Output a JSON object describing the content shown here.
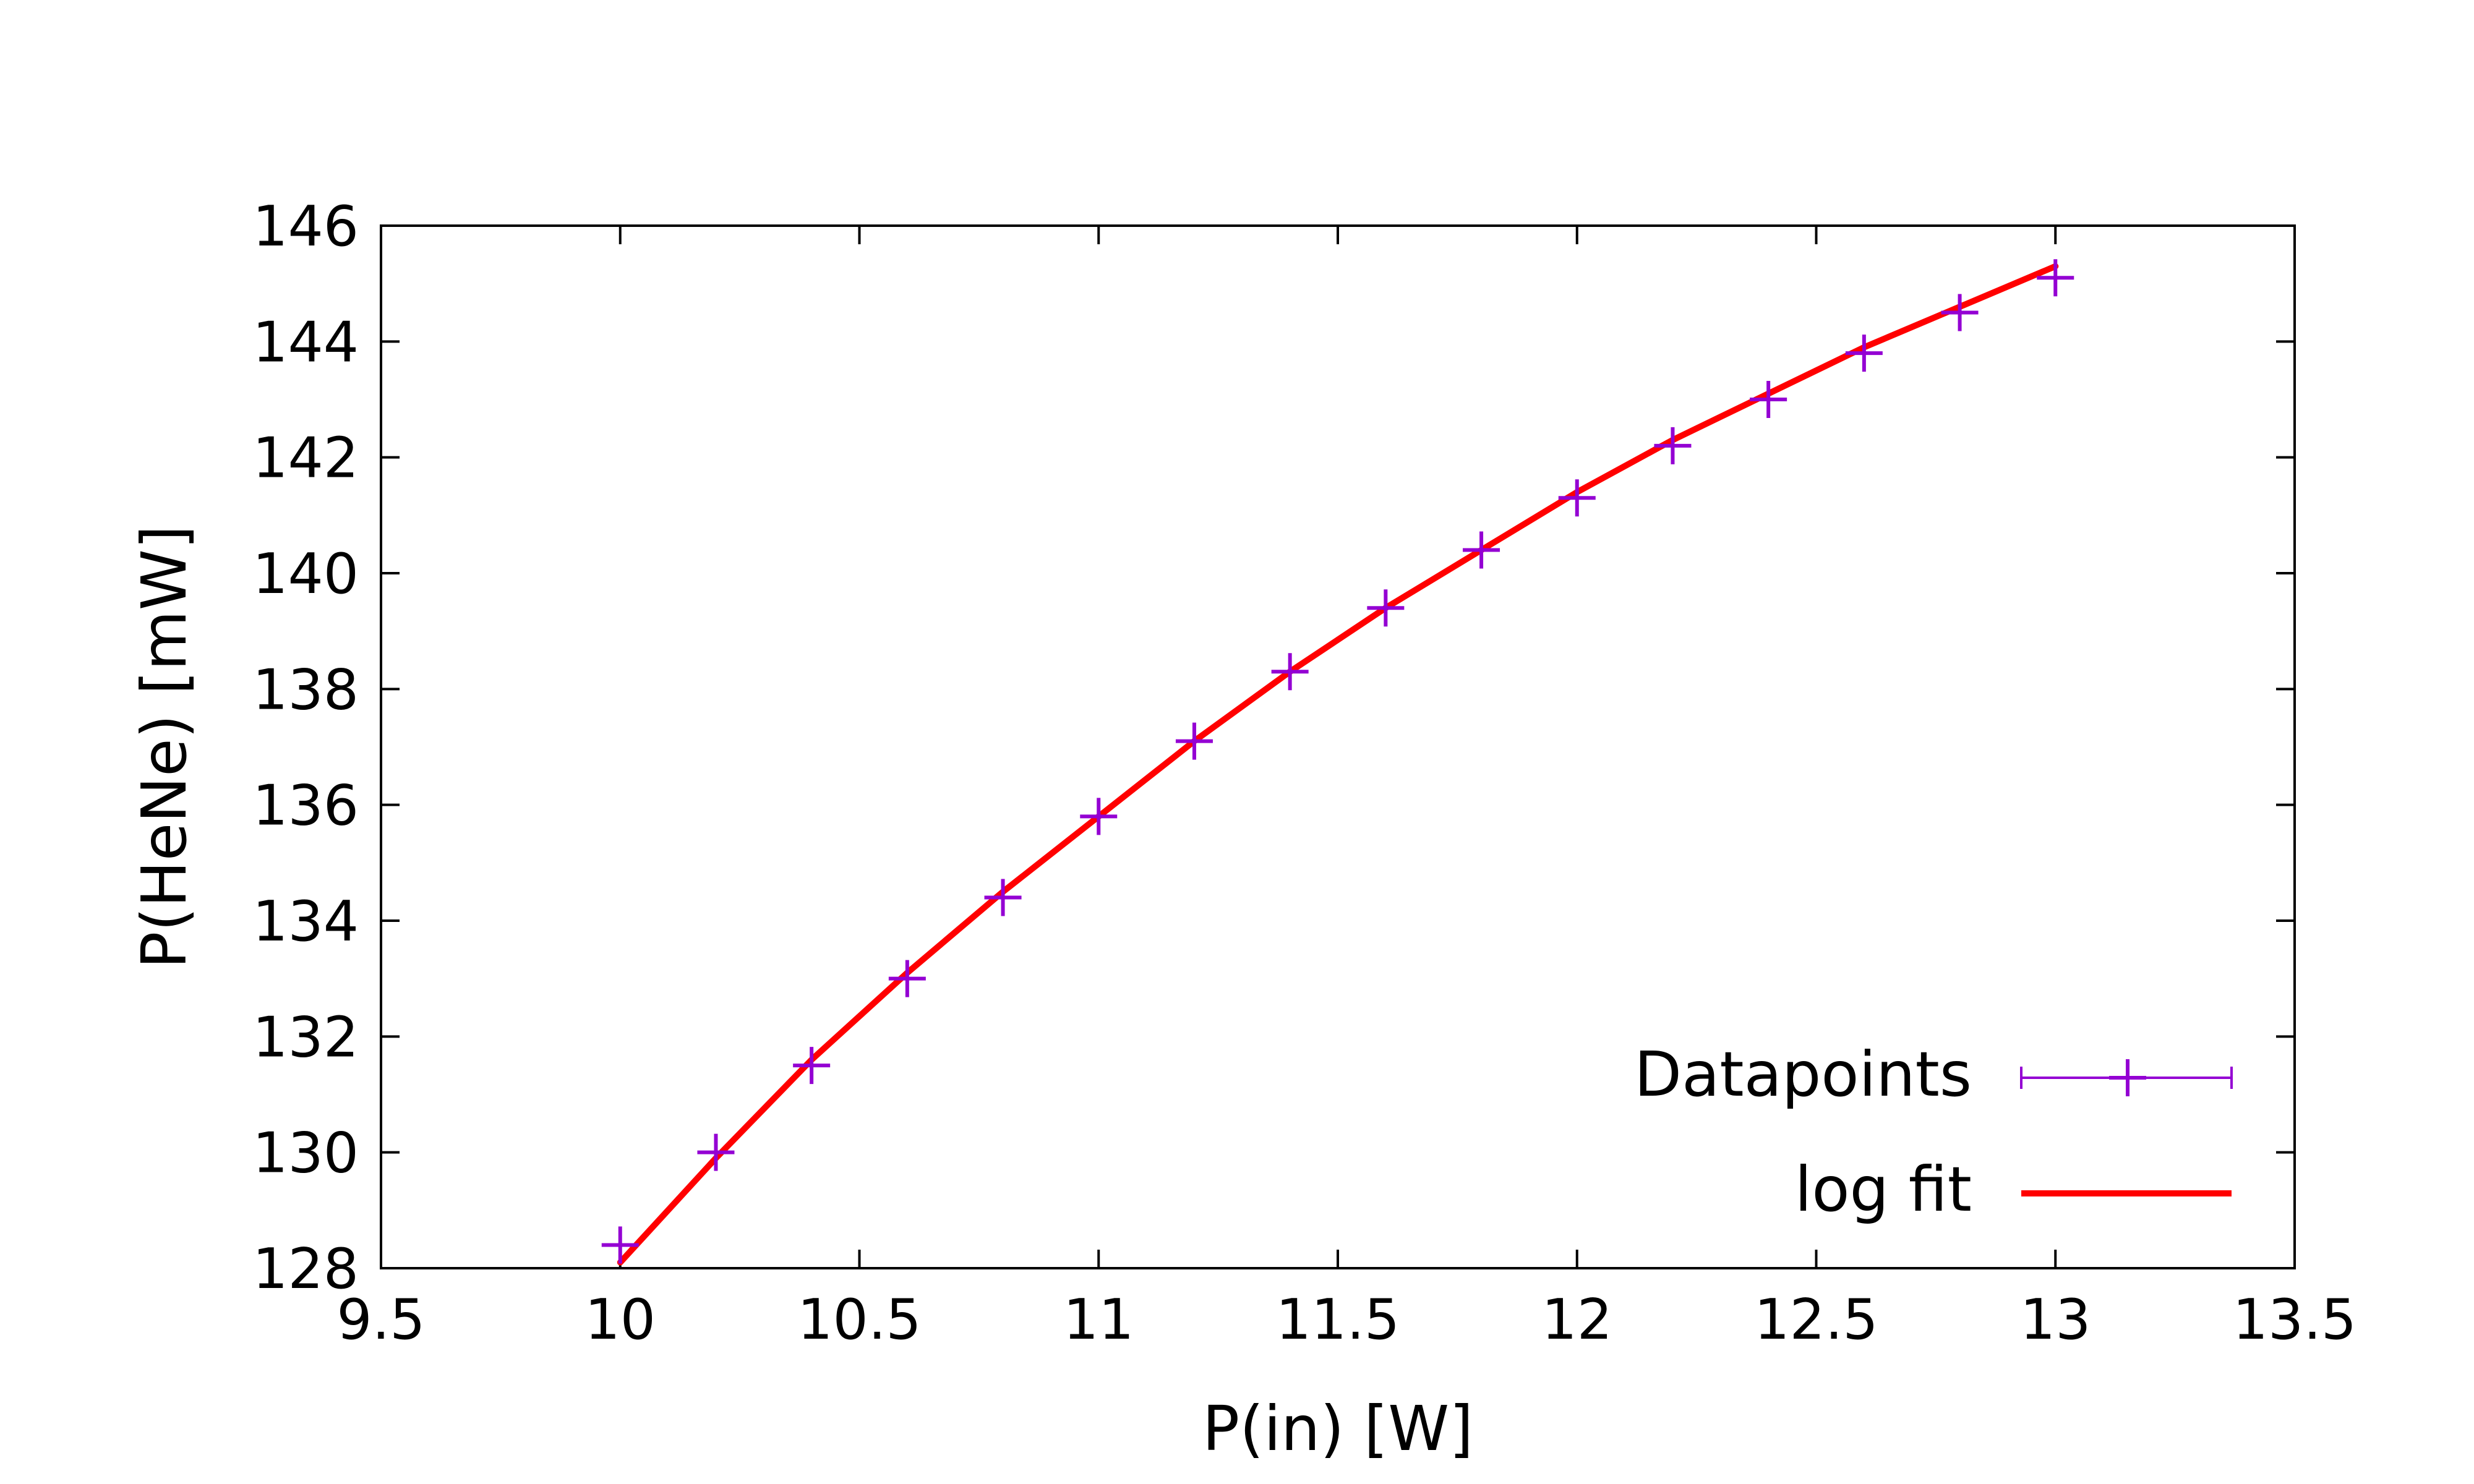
{
  "chart_data": {
    "type": "line",
    "title": "",
    "xlabel": "P(in) [W]",
    "ylabel": "P(HeNe) [mW]",
    "xlim": [
      9.5,
      13.5
    ],
    "ylim": [
      128,
      146
    ],
    "xticks": [
      "9.5",
      "10",
      "10.5",
      "11",
      "11.5",
      "12",
      "12.5",
      "13",
      "13.5"
    ],
    "yticks": [
      "128",
      "130",
      "132",
      "134",
      "136",
      "138",
      "140",
      "142",
      "144",
      "146"
    ],
    "grid": false,
    "legend_position": "bottom-right",
    "series": [
      {
        "name": "Datapoints",
        "kind": "points-with-xerror",
        "color": "#9400d3",
        "x": [
          10.0,
          10.2,
          10.4,
          10.6,
          10.8,
          11.0,
          11.2,
          11.4,
          11.6,
          11.8,
          12.0,
          12.2,
          12.4,
          12.6,
          12.8,
          13.0
        ],
        "y": [
          128.4,
          130.0,
          131.5,
          133.0,
          134.4,
          135.8,
          137.1,
          138.3,
          139.4,
          140.4,
          141.3,
          142.2,
          143.0,
          143.8,
          144.5,
          145.1
        ]
      },
      {
        "name": "log fit",
        "kind": "line",
        "color": "#ff0000",
        "x": [
          10.0,
          10.2,
          10.4,
          10.6,
          10.8,
          11.0,
          11.2,
          11.4,
          11.6,
          11.8,
          12.0,
          12.2,
          12.4,
          12.6,
          12.8,
          13.0
        ],
        "y": [
          128.1,
          129.9,
          131.6,
          133.1,
          134.5,
          135.8,
          137.1,
          138.3,
          139.4,
          140.4,
          141.4,
          142.3,
          143.1,
          143.9,
          144.6,
          145.3
        ]
      }
    ]
  }
}
